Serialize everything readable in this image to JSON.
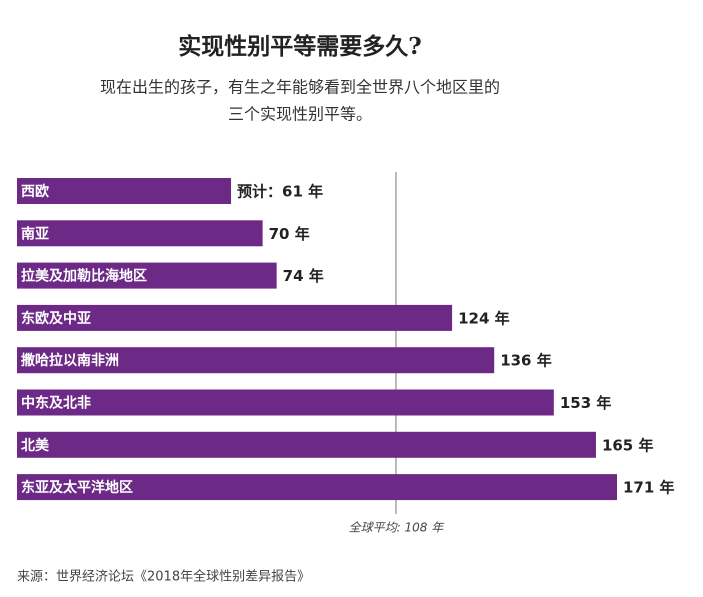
{
  "chart_data": {
    "type": "bar",
    "orientation": "horizontal",
    "title": "实现性别平等需要多久?",
    "subtitle": [
      "现在出生的孩子，有生之年能够看到全世界八个地区里的",
      "三个实现性别平等。"
    ],
    "categories": [
      "西欧",
      "南亚",
      "拉美及加勒比海地区",
      "东欧及中亚",
      "撒哈拉以南非洲",
      "中东及北非",
      "北美",
      "东亚及太平洋地区"
    ],
    "values": [
      61,
      70,
      74,
      124,
      136,
      153,
      165,
      171
    ],
    "value_labels": [
      "预计：61 年",
      "70 年",
      "74 年",
      "124 年",
      "136 年",
      "153 年",
      "165 年",
      "171 年"
    ],
    "color": "#6c2a86",
    "reference": {
      "value": 108,
      "label": "全球平均: 108 年"
    },
    "source": "来源：世界经济论坛《2018年全球性别差异报告》"
  }
}
